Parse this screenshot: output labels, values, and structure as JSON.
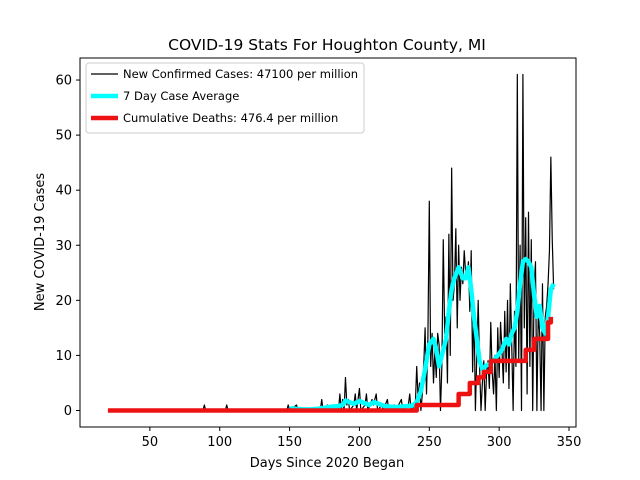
{
  "chart_data": {
    "type": "line",
    "title": "COVID-19 Stats For Houghton County, MI",
    "xlabel": "Days Since 2020 Began",
    "ylabel": "New COVID-19 Cases",
    "xlim": [
      0,
      355
    ],
    "ylim": [
      -3,
      64
    ],
    "xticks": [
      50,
      100,
      150,
      200,
      250,
      300,
      350
    ],
    "yticks": [
      0,
      10,
      20,
      30,
      40,
      50,
      60
    ],
    "grid": false,
    "legend_position": "top-left",
    "series": [
      {
        "name": "New Confirmed Cases: 47100 per million",
        "color": "#000000",
        "width": 1.2,
        "points": [
          [
            20,
            0
          ],
          [
            88,
            0
          ],
          [
            89,
            1
          ],
          [
            90,
            0
          ],
          [
            104,
            0
          ],
          [
            105,
            1
          ],
          [
            106,
            0
          ],
          [
            148,
            0
          ],
          [
            149,
            1
          ],
          [
            150,
            0
          ],
          [
            155,
            1
          ],
          [
            156,
            0
          ],
          [
            172,
            0
          ],
          [
            173,
            2
          ],
          [
            174,
            0
          ],
          [
            177,
            1
          ],
          [
            178,
            0
          ],
          [
            185,
            0
          ],
          [
            186,
            3
          ],
          [
            187,
            0
          ],
          [
            188,
            2
          ],
          [
            189,
            0
          ],
          [
            190,
            6
          ],
          [
            191,
            1
          ],
          [
            192,
            2
          ],
          [
            193,
            0
          ],
          [
            196,
            1
          ],
          [
            197,
            3
          ],
          [
            198,
            0
          ],
          [
            200,
            4
          ],
          [
            201,
            0
          ],
          [
            204,
            1
          ],
          [
            205,
            3
          ],
          [
            206,
            0
          ],
          [
            209,
            2
          ],
          [
            210,
            1
          ],
          [
            212,
            3
          ],
          [
            213,
            0
          ],
          [
            216,
            1
          ],
          [
            217,
            0
          ],
          [
            220,
            2
          ],
          [
            221,
            0
          ],
          [
            225,
            1
          ],
          [
            226,
            0
          ],
          [
            230,
            2
          ],
          [
            231,
            0
          ],
          [
            235,
            1
          ],
          [
            236,
            3
          ],
          [
            237,
            0
          ],
          [
            240,
            1
          ],
          [
            241,
            8
          ],
          [
            242,
            2
          ],
          [
            243,
            5
          ],
          [
            244,
            0
          ],
          [
            245,
            3
          ],
          [
            246,
            8
          ],
          [
            247,
            15
          ],
          [
            248,
            3
          ],
          [
            249,
            13
          ],
          [
            250,
            38
          ],
          [
            251,
            8
          ],
          [
            252,
            14
          ],
          [
            253,
            5
          ],
          [
            254,
            11
          ],
          [
            255,
            6
          ],
          [
            256,
            14
          ],
          [
            257,
            12
          ],
          [
            258,
            0
          ],
          [
            259,
            8
          ],
          [
            260,
            31
          ],
          [
            261,
            14
          ],
          [
            262,
            17
          ],
          [
            263,
            5
          ],
          [
            264,
            32
          ],
          [
            265,
            10
          ],
          [
            266,
            44
          ],
          [
            267,
            20
          ],
          [
            268,
            23
          ],
          [
            269,
            33
          ],
          [
            270,
            15
          ],
          [
            271,
            30
          ],
          [
            272,
            20
          ],
          [
            273,
            26
          ],
          [
            274,
            23
          ],
          [
            275,
            29
          ],
          [
            276,
            25
          ],
          [
            277,
            24
          ],
          [
            278,
            27
          ],
          [
            279,
            18
          ],
          [
            280,
            29
          ],
          [
            281,
            7
          ],
          [
            282,
            19
          ],
          [
            283,
            0
          ],
          [
            284,
            10
          ],
          [
            285,
            20
          ],
          [
            286,
            8
          ],
          [
            287,
            0
          ],
          [
            288,
            5
          ],
          [
            289,
            9
          ],
          [
            290,
            0
          ],
          [
            291,
            7
          ],
          [
            292,
            9
          ],
          [
            293,
            4
          ],
          [
            294,
            16
          ],
          [
            295,
            7
          ],
          [
            296,
            3
          ],
          [
            297,
            10
          ],
          [
            298,
            0
          ],
          [
            299,
            15
          ],
          [
            300,
            6
          ],
          [
            301,
            16
          ],
          [
            302,
            11
          ],
          [
            303,
            5
          ],
          [
            304,
            18
          ],
          [
            305,
            7
          ],
          [
            306,
            20
          ],
          [
            307,
            4
          ],
          [
            308,
            23
          ],
          [
            309,
            12
          ],
          [
            310,
            0
          ],
          [
            311,
            18
          ],
          [
            312,
            8
          ],
          [
            313,
            61
          ],
          [
            314,
            9
          ],
          [
            315,
            30
          ],
          [
            316,
            0
          ],
          [
            317,
            61
          ],
          [
            318,
            15
          ],
          [
            319,
            35
          ],
          [
            320,
            3
          ],
          [
            321,
            36
          ],
          [
            322,
            8
          ],
          [
            323,
            31
          ],
          [
            324,
            0
          ],
          [
            325,
            22
          ],
          [
            326,
            27
          ],
          [
            327,
            0
          ],
          [
            328,
            18
          ],
          [
            329,
            14
          ],
          [
            330,
            0
          ],
          [
            331,
            23
          ],
          [
            332,
            0
          ],
          [
            333,
            17
          ],
          [
            334,
            19
          ],
          [
            335,
            23
          ],
          [
            336,
            29
          ],
          [
            337,
            46
          ],
          [
            338,
            31
          ],
          [
            339,
            22
          ]
        ]
      },
      {
        "name": "7 Day Case Average",
        "color": "#00ffff",
        "width": 4.5,
        "points": [
          [
            150,
            0.3
          ],
          [
            152,
            0.4
          ],
          [
            155,
            0.3
          ],
          [
            160,
            0.2
          ],
          [
            165,
            0.2
          ],
          [
            170,
            0.3
          ],
          [
            175,
            0.5
          ],
          [
            180,
            0.7
          ],
          [
            185,
            0.8
          ],
          [
            188,
            1.0
          ],
          [
            190,
            1.8
          ],
          [
            193,
            1.5
          ],
          [
            196,
            1.2
          ],
          [
            200,
            1.7
          ],
          [
            203,
            1.4
          ],
          [
            207,
            1.0
          ],
          [
            210,
            1.5
          ],
          [
            214,
            1.2
          ],
          [
            218,
            0.8
          ],
          [
            222,
            0.7
          ],
          [
            226,
            0.6
          ],
          [
            230,
            0.7
          ],
          [
            234,
            0.8
          ],
          [
            238,
            0.9
          ],
          [
            241,
            1.5
          ],
          [
            244,
            3.5
          ],
          [
            247,
            7.5
          ],
          [
            250,
            12
          ],
          [
            253,
            13
          ],
          [
            255,
            11
          ],
          [
            257,
            8
          ],
          [
            259,
            10
          ],
          [
            262,
            13
          ],
          [
            264,
            18
          ],
          [
            266,
            22
          ],
          [
            268,
            24
          ],
          [
            271,
            26
          ],
          [
            274,
            24
          ],
          [
            276,
            24
          ],
          [
            278,
            26
          ],
          [
            279,
            24
          ],
          [
            280,
            22
          ],
          [
            282,
            17
          ],
          [
            284,
            13
          ],
          [
            286,
            9
          ],
          [
            288,
            7.5
          ],
          [
            290,
            8
          ],
          [
            293,
            8.5
          ],
          [
            296,
            9
          ],
          [
            299,
            10
          ],
          [
            302,
            11
          ],
          [
            305,
            13
          ],
          [
            307,
            12
          ],
          [
            309,
            14
          ],
          [
            311,
            15
          ],
          [
            313,
            18
          ],
          [
            315,
            23
          ],
          [
            317,
            27
          ],
          [
            319,
            27.5
          ],
          [
            321,
            27
          ],
          [
            323,
            26
          ],
          [
            325,
            21
          ],
          [
            327,
            17
          ],
          [
            329,
            19
          ],
          [
            331,
            15
          ],
          [
            333,
            14
          ],
          [
            335,
            17
          ],
          [
            337,
            22
          ],
          [
            339,
            23
          ]
        ]
      },
      {
        "name": "Cumulative Deaths: 476.4 per million",
        "color": "#ee1111",
        "width": 4.5,
        "step": true,
        "points": [
          [
            20,
            0
          ],
          [
            240,
            0
          ],
          [
            241,
            1
          ],
          [
            270,
            1
          ],
          [
            271,
            3
          ],
          [
            278,
            3
          ],
          [
            279,
            5
          ],
          [
            284,
            5
          ],
          [
            285,
            6
          ],
          [
            288,
            6
          ],
          [
            289,
            7
          ],
          [
            293,
            7
          ],
          [
            294,
            9
          ],
          [
            318,
            9
          ],
          [
            319,
            11
          ],
          [
            324,
            11
          ],
          [
            325,
            13
          ],
          [
            334,
            13
          ],
          [
            335,
            16
          ],
          [
            337,
            17
          ]
        ]
      }
    ]
  }
}
